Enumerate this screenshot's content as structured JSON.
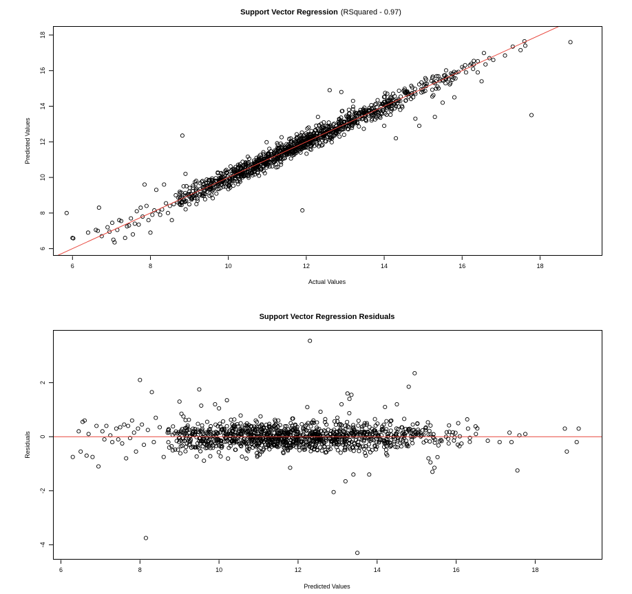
{
  "chart_data": [
    {
      "type": "scatter",
      "title": "Support Vector Regression",
      "subtitle": "(RSquared - 0.97)",
      "xlabel": "Actual Values",
      "ylabel": "Predicted Values",
      "xlim": [
        5.5,
        19.6
      ],
      "ylim": [
        5.6,
        18.5
      ],
      "xticks": [
        6,
        8,
        10,
        12,
        14,
        16,
        18
      ],
      "yticks": [
        6,
        8,
        10,
        12,
        14,
        16,
        18
      ],
      "grid": false,
      "reference_line": {
        "type": "identity",
        "slope": 1,
        "intercept": 0,
        "color": "#e8443a"
      },
      "generated": {
        "n": 1150,
        "x_min": 8.7,
        "x_max": 16.6,
        "density_center": 11.5,
        "density_sd": 2.0,
        "noise_sd": 0.27,
        "seed": 17
      },
      "points": [
        [
          5.85,
          8.0
        ],
        [
          6.0,
          6.6
        ],
        [
          6.02,
          6.58
        ],
        [
          6.4,
          6.9
        ],
        [
          6.6,
          7.05
        ],
        [
          6.65,
          7.0
        ],
        [
          6.68,
          8.3
        ],
        [
          6.75,
          6.7
        ],
        [
          6.9,
          7.2
        ],
        [
          6.95,
          6.95
        ],
        [
          7.02,
          7.45
        ],
        [
          7.05,
          6.5
        ],
        [
          7.08,
          6.35
        ],
        [
          7.15,
          7.05
        ],
        [
          7.2,
          7.6
        ],
        [
          7.25,
          7.55
        ],
        [
          7.35,
          6.6
        ],
        [
          7.4,
          7.25
        ],
        [
          7.45,
          7.3
        ],
        [
          7.5,
          7.7
        ],
        [
          7.55,
          6.8
        ],
        [
          7.6,
          7.4
        ],
        [
          7.65,
          8.1
        ],
        [
          7.7,
          7.35
        ],
        [
          7.75,
          8.3
        ],
        [
          7.8,
          7.8
        ],
        [
          7.85,
          9.6
        ],
        [
          7.9,
          8.4
        ],
        [
          7.95,
          7.6
        ],
        [
          8.0,
          6.9
        ],
        [
          8.05,
          7.9
        ],
        [
          8.1,
          8.15
        ],
        [
          8.15,
          9.3
        ],
        [
          8.2,
          8.1
        ],
        [
          8.25,
          7.9
        ],
        [
          8.3,
          8.2
        ],
        [
          8.35,
          9.6
        ],
        [
          8.4,
          8.55
        ],
        [
          8.45,
          8.0
        ],
        [
          8.5,
          8.4
        ],
        [
          8.55,
          7.6
        ],
        [
          8.6,
          8.5
        ],
        [
          8.65,
          9.0
        ],
        [
          8.7,
          8.6
        ],
        [
          8.75,
          8.9
        ],
        [
          8.8,
          8.45
        ],
        [
          8.85,
          9.5
        ],
        [
          8.82,
          12.35
        ],
        [
          8.9,
          10.2
        ],
        [
          11.9,
          8.15
        ],
        [
          12.3,
          13.4
        ],
        [
          12.6,
          14.9
        ],
        [
          12.9,
          14.8
        ],
        [
          13.2,
          14.3
        ],
        [
          14.0,
          12.9
        ],
        [
          14.3,
          12.2
        ],
        [
          14.8,
          13.3
        ],
        [
          14.9,
          12.9
        ],
        [
          15.3,
          13.4
        ],
        [
          15.5,
          14.2
        ],
        [
          15.8,
          14.5
        ],
        [
          16.5,
          15.4
        ],
        [
          16.7,
          16.7
        ],
        [
          16.8,
          16.6
        ],
        [
          17.1,
          16.85
        ],
        [
          17.3,
          17.35
        ],
        [
          17.5,
          17.15
        ],
        [
          17.6,
          17.65
        ],
        [
          17.62,
          17.4
        ],
        [
          17.78,
          13.5
        ],
        [
          18.78,
          17.6
        ],
        [
          16.3,
          16.55
        ],
        [
          16.0,
          16.2
        ],
        [
          16.1,
          15.9
        ],
        [
          15.6,
          15.65
        ],
        [
          15.7,
          15.3
        ],
        [
          16.2,
          16.3
        ],
        [
          16.4,
          15.9
        ],
        [
          16.6,
          16.35
        ]
      ]
    },
    {
      "type": "scatter",
      "title": "Support Vector Regression Residuals",
      "xlabel": "Predicted Values",
      "ylabel": "Residuals",
      "xlim": [
        5.8,
        19.7
      ],
      "ylim": [
        -4.55,
        3.95
      ],
      "xticks": [
        6,
        8,
        10,
        12,
        14,
        16,
        18
      ],
      "yticks": [
        -4,
        -2,
        0,
        2
      ],
      "grid": false,
      "reference_line": {
        "type": "horizontal",
        "y": 0,
        "color": "#e8443a"
      },
      "generated": {
        "n": 1150,
        "x_min": 8.7,
        "x_max": 16.6,
        "density_center": 11.6,
        "density_sd": 2.0,
        "noise_sd": 0.27,
        "seed": 29
      },
      "points": [
        [
          6.3,
          -0.75
        ],
        [
          6.45,
          0.2
        ],
        [
          6.5,
          -0.55
        ],
        [
          6.55,
          0.55
        ],
        [
          6.6,
          0.6
        ],
        [
          6.65,
          -0.7
        ],
        [
          6.7,
          0.1
        ],
        [
          6.8,
          -0.75
        ],
        [
          6.9,
          0.4
        ],
        [
          6.95,
          -1.1
        ],
        [
          7.05,
          0.2
        ],
        [
          7.1,
          -0.1
        ],
        [
          7.15,
          0.4
        ],
        [
          7.25,
          0.05
        ],
        [
          7.3,
          -0.2
        ],
        [
          7.4,
          0.3
        ],
        [
          7.45,
          -0.1
        ],
        [
          7.5,
          0.35
        ],
        [
          7.55,
          -0.25
        ],
        [
          7.6,
          0.45
        ],
        [
          7.65,
          -0.8
        ],
        [
          7.7,
          0.4
        ],
        [
          7.75,
          -0.05
        ],
        [
          7.8,
          0.6
        ],
        [
          7.85,
          0.15
        ],
        [
          7.9,
          -0.55
        ],
        [
          7.95,
          0.3
        ],
        [
          8.0,
          2.1
        ],
        [
          8.05,
          0.45
        ],
        [
          8.1,
          -0.3
        ],
        [
          8.15,
          -3.75
        ],
        [
          8.2,
          0.25
        ],
        [
          8.3,
          1.65
        ],
        [
          8.35,
          -0.2
        ],
        [
          8.4,
          0.7
        ],
        [
          8.5,
          0.35
        ],
        [
          8.6,
          -0.75
        ],
        [
          8.7,
          0.15
        ],
        [
          8.8,
          -0.35
        ],
        [
          9.0,
          1.3
        ],
        [
          9.05,
          0.85
        ],
        [
          9.1,
          0.75
        ],
        [
          9.5,
          1.75
        ],
        [
          9.55,
          1.15
        ],
        [
          9.7,
          0.55
        ],
        [
          9.9,
          1.2
        ],
        [
          10.0,
          1.05
        ],
        [
          10.2,
          1.35
        ],
        [
          11.5,
          0.6
        ],
        [
          11.8,
          -1.15
        ],
        [
          12.3,
          3.55
        ],
        [
          12.9,
          -2.05
        ],
        [
          13.1,
          1.2
        ],
        [
          13.2,
          -1.65
        ],
        [
          13.25,
          1.6
        ],
        [
          13.3,
          1.4
        ],
        [
          13.35,
          1.55
        ],
        [
          13.4,
          -1.4
        ],
        [
          13.5,
          -4.3
        ],
        [
          13.8,
          -1.4
        ],
        [
          14.2,
          1.1
        ],
        [
          14.5,
          1.2
        ],
        [
          14.8,
          1.85
        ],
        [
          14.95,
          2.35
        ],
        [
          15.3,
          -0.8
        ],
        [
          15.35,
          -0.95
        ],
        [
          15.4,
          -1.3
        ],
        [
          15.45,
          -1.15
        ],
        [
          16.3,
          0.3
        ],
        [
          16.5,
          0.1
        ],
        [
          16.8,
          -0.15
        ],
        [
          17.1,
          -0.2
        ],
        [
          17.35,
          0.15
        ],
        [
          17.4,
          -0.2
        ],
        [
          17.55,
          -1.25
        ],
        [
          17.6,
          0.05
        ],
        [
          17.75,
          0.1
        ],
        [
          18.75,
          0.3
        ],
        [
          18.8,
          -0.55
        ],
        [
          19.05,
          -0.2
        ],
        [
          19.1,
          0.3
        ]
      ]
    }
  ],
  "tick_text": {
    "top_x": [
      "6",
      "8",
      "10",
      "12",
      "14",
      "16",
      "18"
    ],
    "top_y": [
      "6",
      "8",
      "10",
      "12",
      "14",
      "16",
      "18"
    ],
    "bottom_x": [
      "6",
      "8",
      "10",
      "12",
      "14",
      "16",
      "18"
    ],
    "bottom_y": [
      "-4",
      "-2",
      "0",
      "2"
    ]
  }
}
